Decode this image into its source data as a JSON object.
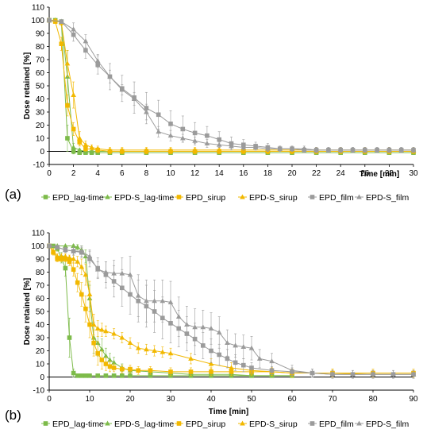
{
  "chart_data": [
    {
      "type": "line",
      "panel_label": "(a)",
      "xlabel": "Time [min]",
      "ylabel": "Dose retained [%]",
      "xlim": [
        0,
        30
      ],
      "ylim": [
        -10,
        110
      ],
      "x_ticks": [
        0,
        2,
        4,
        6,
        8,
        10,
        12,
        14,
        16,
        18,
        20,
        22,
        24,
        26,
        28,
        30
      ],
      "y_ticks": [
        -10,
        0,
        10,
        20,
        30,
        40,
        50,
        60,
        70,
        80,
        90,
        100,
        110
      ],
      "legend_position": "bottom",
      "series": [
        {
          "name": "EPD_lag-time",
          "color": "#7dbb4a",
          "marker": "square",
          "x": [
            0,
            0.5,
            1,
            1.5,
            2,
            2.5,
            3,
            3.5,
            4,
            5,
            6,
            8,
            10,
            12,
            14,
            16,
            18,
            20,
            22,
            24,
            26,
            28,
            30
          ],
          "y": [
            100,
            100,
            99,
            10,
            0,
            -1,
            -1,
            -1,
            -1,
            -1,
            -1,
            -1,
            -1,
            -1,
            -1,
            -1,
            -1,
            -1,
            -1,
            -1,
            -1,
            -1,
            -1
          ],
          "err": [
            0,
            0,
            1,
            10,
            2,
            1,
            1,
            1,
            1,
            1,
            1,
            1,
            1,
            1,
            1,
            1,
            1,
            1,
            1,
            1,
            1,
            1,
            1
          ]
        },
        {
          "name": "EPD-S_lag-time",
          "color": "#7dbb4a",
          "marker": "triangle",
          "x": [
            0,
            0.5,
            1,
            1.5,
            2,
            2.5,
            3,
            3.5,
            4,
            5,
            6,
            8,
            10,
            12,
            14,
            16,
            18,
            20,
            22,
            24,
            26,
            28,
            30
          ],
          "y": [
            100,
            100,
            99,
            57,
            3,
            1,
            0,
            0,
            0,
            0,
            0,
            0,
            0,
            0,
            0,
            0,
            0,
            0,
            0,
            0,
            0,
            0,
            0
          ],
          "err": [
            0,
            0,
            1,
            20,
            3,
            1,
            1,
            1,
            1,
            1,
            1,
            1,
            1,
            1,
            1,
            1,
            1,
            1,
            1,
            1,
            1,
            1,
            1
          ]
        },
        {
          "name": "EPD_sirup",
          "color": "#f2b800",
          "marker": "square",
          "x": [
            0,
            0.5,
            1,
            1.5,
            2,
            2.5,
            3,
            4,
            5,
            6,
            8,
            10,
            12,
            14,
            16,
            18,
            20,
            22,
            24,
            26,
            28,
            30
          ],
          "y": [
            100,
            99,
            82,
            35,
            17,
            7,
            2,
            1,
            0,
            0,
            0,
            0,
            0,
            0,
            0,
            0,
            0,
            0,
            0,
            0,
            0,
            0
          ],
          "err": [
            0,
            1,
            5,
            8,
            5,
            3,
            2,
            2,
            2,
            2,
            2,
            2,
            2,
            2,
            2,
            2,
            2,
            2,
            2,
            2,
            2,
            2
          ]
        },
        {
          "name": "EPD-S_sirup",
          "color": "#f2b800",
          "marker": "triangle",
          "x": [
            0,
            0.5,
            1,
            1.5,
            2,
            2.5,
            3,
            3.5,
            4,
            5,
            6,
            8,
            10,
            12,
            14,
            16,
            18,
            20,
            22,
            24,
            26,
            28,
            30
          ],
          "y": [
            100,
            100,
            98,
            67,
            43,
            10,
            5,
            3,
            2,
            1,
            1,
            1,
            1,
            1,
            1,
            1,
            1,
            1,
            1,
            1,
            1,
            1,
            1
          ],
          "err": [
            0,
            0,
            2,
            10,
            10,
            5,
            3,
            2,
            2,
            2,
            2,
            2,
            2,
            2,
            2,
            2,
            2,
            2,
            2,
            2,
            2,
            2,
            2
          ]
        },
        {
          "name": "EPD_film",
          "color": "#9b9b9b",
          "marker": "square",
          "x": [
            0,
            1,
            2,
            3,
            4,
            5,
            6,
            7,
            8,
            9,
            10,
            11,
            12,
            13,
            14,
            15,
            16,
            17,
            18,
            19,
            20,
            21,
            22,
            23,
            24,
            25,
            26,
            27,
            28,
            29,
            30
          ],
          "y": [
            100,
            99,
            89,
            77,
            66,
            57,
            48,
            41,
            33,
            28,
            21,
            17,
            14,
            12,
            9,
            6,
            5,
            4,
            3,
            2,
            2,
            1,
            1,
            1,
            1,
            1,
            1,
            1,
            1,
            1,
            1
          ],
          "err": [
            0,
            1,
            5,
            6,
            7,
            10,
            10,
            12,
            12,
            11,
            10,
            10,
            8,
            7,
            6,
            5,
            4,
            3,
            3,
            2,
            2,
            2,
            2,
            2,
            2,
            2,
            2,
            2,
            2,
            2,
            2
          ]
        },
        {
          "name": "EPD-S_film",
          "color": "#9b9b9b",
          "marker": "triangle",
          "x": [
            0,
            1,
            2,
            3,
            4,
            5,
            6,
            7,
            8,
            9,
            10,
            11,
            12,
            13,
            14,
            15,
            16,
            17,
            18,
            19,
            20,
            21,
            22,
            23,
            24,
            25,
            26,
            27,
            28,
            29,
            30
          ],
          "y": [
            100,
            99,
            93,
            84,
            69,
            57,
            47,
            40,
            30,
            15,
            12,
            10,
            8,
            6,
            5,
            4,
            3,
            3,
            2,
            2,
            2,
            2,
            1,
            1,
            1,
            1,
            1,
            1,
            1,
            1,
            1
          ],
          "err": [
            0,
            1,
            5,
            5,
            5,
            5,
            4,
            5,
            6,
            4,
            4,
            3,
            3,
            3,
            2,
            2,
            2,
            2,
            2,
            2,
            2,
            2,
            2,
            2,
            2,
            2,
            2,
            2,
            2,
            2,
            2
          ]
        }
      ]
    },
    {
      "type": "line",
      "panel_label": "(b)",
      "xlabel": "Time [min]",
      "ylabel": "Dose retained [%]",
      "xlim": [
        0,
        90
      ],
      "ylim": [
        -10,
        110
      ],
      "x_ticks": [
        0,
        10,
        20,
        30,
        40,
        50,
        60,
        70,
        80,
        90
      ],
      "y_ticks": [
        -10,
        0,
        10,
        20,
        30,
        40,
        50,
        60,
        70,
        80,
        90,
        100,
        110
      ],
      "legend_position": "bottom",
      "series": [
        {
          "name": "EPD_lag-time",
          "color": "#7dbb4a",
          "marker": "square",
          "x": [
            0,
            1,
            2,
            3,
            4,
            5,
            6,
            7,
            8,
            9,
            10,
            12,
            14,
            16,
            18,
            20,
            25,
            30,
            35,
            40,
            45,
            50,
            55,
            60
          ],
          "y": [
            100,
            100,
            98,
            91,
            83,
            30,
            3,
            1,
            1,
            1,
            1,
            1,
            1,
            1,
            1,
            1,
            1,
            1,
            1,
            1,
            1,
            1,
            1,
            1
          ],
          "err": [
            0,
            0,
            2,
            4,
            6,
            15,
            3,
            1,
            1,
            1,
            1,
            1,
            1,
            1,
            1,
            1,
            1,
            1,
            1,
            1,
            1,
            1,
            1,
            1
          ]
        },
        {
          "name": "EPD-S_lag-time",
          "color": "#7dbb4a",
          "marker": "triangle",
          "x": [
            0,
            2,
            4,
            6,
            7,
            8,
            9,
            10,
            11,
            12,
            13,
            14,
            15,
            16,
            18,
            20,
            25,
            30,
            35,
            40,
            45,
            50,
            55,
            60
          ],
          "y": [
            100,
            100,
            100,
            100,
            99,
            97,
            92,
            60,
            30,
            26,
            21,
            16,
            13,
            11,
            7,
            5,
            4,
            3,
            2,
            2,
            2,
            1,
            1,
            1
          ],
          "err": [
            0,
            0,
            0,
            1,
            2,
            3,
            5,
            10,
            12,
            10,
            8,
            6,
            5,
            4,
            3,
            2,
            2,
            2,
            2,
            1,
            1,
            1,
            1,
            1
          ]
        },
        {
          "name": "EPD_sirup",
          "color": "#f2b800",
          "marker": "square",
          "x": [
            0,
            1,
            2,
            3,
            4,
            5,
            6,
            7,
            8,
            9,
            10,
            11,
            12,
            13,
            14,
            15,
            16,
            18,
            20,
            22,
            25,
            30,
            35,
            40,
            45,
            50,
            55,
            60,
            70,
            80,
            90
          ],
          "y": [
            100,
            95,
            90,
            90,
            90,
            88,
            82,
            72,
            63,
            52,
            40,
            26,
            18,
            13,
            10,
            8,
            7,
            6,
            6,
            5,
            5,
            4,
            4,
            4,
            4,
            4,
            4,
            3,
            3,
            3,
            3
          ],
          "err": [
            0,
            2,
            2,
            2,
            2,
            3,
            5,
            7,
            9,
            10,
            10,
            10,
            9,
            7,
            5,
            4,
            3,
            3,
            3,
            3,
            3,
            3,
            3,
            3,
            3,
            3,
            3,
            3,
            3,
            3,
            3
          ]
        },
        {
          "name": "EPD-S_sirup",
          "color": "#f2b800",
          "marker": "triangle",
          "x": [
            0,
            1,
            2,
            3,
            4,
            5,
            6,
            7,
            8,
            9,
            10,
            11,
            12,
            13,
            14,
            16,
            18,
            20,
            22,
            24,
            26,
            28,
            30,
            35,
            40,
            45,
            50,
            55,
            60,
            70,
            80,
            90
          ],
          "y": [
            100,
            96,
            92,
            92,
            92,
            91,
            90,
            88,
            84,
            78,
            63,
            40,
            37,
            36,
            35,
            33,
            30,
            26,
            22,
            21,
            20,
            19,
            18,
            14,
            10,
            7,
            5,
            4,
            3,
            3,
            2,
            2
          ],
          "err": [
            0,
            2,
            2,
            2,
            2,
            2,
            3,
            4,
            6,
            8,
            10,
            8,
            6,
            5,
            4,
            4,
            4,
            4,
            4,
            4,
            4,
            4,
            4,
            4,
            4,
            4,
            3,
            3,
            3,
            3,
            3,
            3
          ]
        },
        {
          "name": "EPD_film",
          "color": "#9b9b9b",
          "marker": "square",
          "x": [
            0,
            2,
            4,
            6,
            8,
            10,
            12,
            14,
            16,
            18,
            20,
            22,
            24,
            26,
            28,
            30,
            32,
            34,
            36,
            38,
            40,
            42,
            44,
            46,
            48,
            50,
            55,
            60,
            65,
            70,
            75,
            80,
            85,
            90
          ],
          "y": [
            100,
            99,
            97,
            96,
            95,
            90,
            83,
            78,
            73,
            68,
            63,
            58,
            54,
            50,
            45,
            41,
            37,
            33,
            29,
            24,
            20,
            17,
            14,
            11,
            9,
            7,
            5,
            4,
            3,
            2,
            2,
            2,
            2,
            2
          ],
          "err": [
            0,
            1,
            2,
            3,
            4,
            6,
            8,
            10,
            12,
            14,
            15,
            16,
            16,
            16,
            16,
            15,
            14,
            13,
            12,
            10,
            9,
            8,
            7,
            6,
            5,
            4,
            3,
            3,
            3,
            3,
            3,
            3,
            3,
            3
          ]
        },
        {
          "name": "EPD-S_film",
          "color": "#9b9b9b",
          "marker": "triangle",
          "x": [
            0,
            2,
            4,
            6,
            8,
            10,
            12,
            14,
            16,
            18,
            20,
            22,
            24,
            26,
            28,
            30,
            32,
            34,
            36,
            38,
            40,
            42,
            44,
            46,
            48,
            50,
            52,
            55,
            60,
            65,
            70,
            75,
            80,
            85,
            90
          ],
          "y": [
            100,
            99,
            97,
            96,
            96,
            92,
            82,
            80,
            79,
            79,
            78,
            62,
            58,
            58,
            58,
            57,
            46,
            40,
            38,
            38,
            37,
            34,
            26,
            24,
            23,
            22,
            14,
            12,
            5,
            3,
            2,
            2,
            2,
            2,
            2
          ],
          "err": [
            0,
            1,
            2,
            3,
            4,
            5,
            6,
            8,
            10,
            12,
            14,
            16,
            16,
            16,
            16,
            16,
            15,
            14,
            14,
            13,
            12,
            12,
            10,
            9,
            9,
            9,
            7,
            6,
            4,
            3,
            3,
            3,
            3,
            3,
            3
          ]
        }
      ]
    }
  ]
}
